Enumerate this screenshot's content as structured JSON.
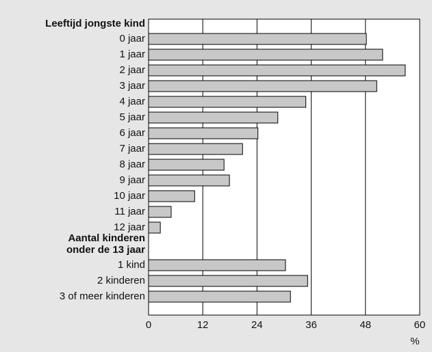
{
  "chart_data": {
    "type": "bar",
    "color": "#c8c8c8",
    "groups": [
      {
        "label": [
          "Leeftijd jongste kind"
        ],
        "categories": [
          "0 jaar",
          "1 jaar",
          "2 jaar",
          "3 jaar",
          "4 jaar",
          "5 jaar",
          "6 jaar",
          "7 jaar",
          "8 jaar",
          "9 jaar",
          "10 jaar",
          "11 jaar",
          "12 jaar"
        ],
        "values": [
          48.2,
          51.8,
          56.8,
          50.5,
          34.8,
          28.6,
          24.2,
          20.8,
          16.7,
          17.9,
          10.2,
          5.0,
          2.6
        ]
      },
      {
        "label": [
          "Aantal kinderen",
          "onder de 13 jaar"
        ],
        "categories": [
          "1 kind",
          "2 kinderen",
          "3 of meer kinderen"
        ],
        "values": [
          30.3,
          35.2,
          31.4
        ]
      }
    ],
    "xlim": [
      0,
      60
    ],
    "xticks": [
      0,
      12,
      24,
      36,
      48,
      60
    ],
    "xlabel": "%",
    "grid": true
  }
}
